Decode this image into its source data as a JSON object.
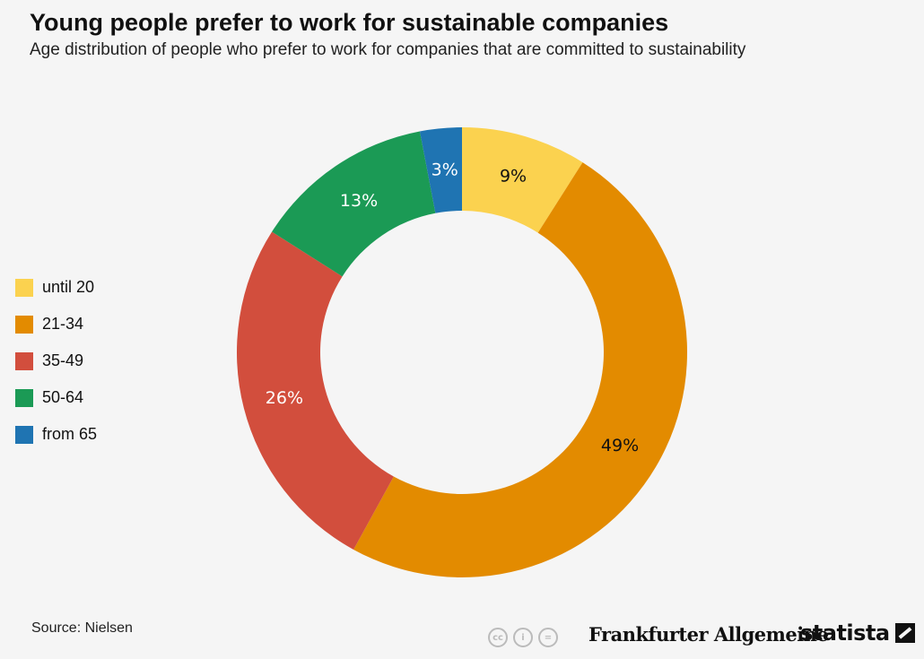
{
  "header": {
    "title": "Young people prefer to work for sustainable companies",
    "subtitle": "Age distribution of people who prefer to work for companies that are committed to sustainability"
  },
  "chart_data": {
    "type": "pie",
    "donut": true,
    "title": "Young people prefer to work for sustainable companies",
    "subtitle": "Age distribution of people who prefer to work for companies that are committed to sustainability",
    "categories": [
      "until 20",
      "21-34",
      "35-49",
      "50-64",
      "from 65"
    ],
    "values": [
      9,
      49,
      26,
      13,
      3
    ],
    "labels": [
      "9%",
      "49%",
      "26%",
      "13%",
      "3%"
    ],
    "unit": "%",
    "colors": [
      "#FBD24F",
      "#E38B00",
      "#D24E3D",
      "#1B9A55",
      "#1F74B2"
    ],
    "label_colors": [
      "#111111",
      "#111111",
      "#ffffff",
      "#ffffff",
      "#ffffff"
    ],
    "legend_position": "left"
  },
  "footer": {
    "source": "Source: Nielsen",
    "cc_icons": [
      "cc-icon",
      "by-icon",
      "nd-icon"
    ],
    "cc_glyphs": [
      "cc",
      "i",
      "="
    ],
    "publisher": "Frankfurter Allgemeine",
    "brand": "statista"
  }
}
